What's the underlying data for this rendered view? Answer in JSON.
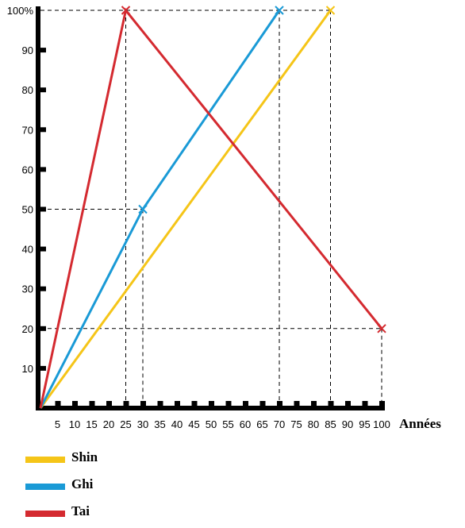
{
  "chart_data": {
    "type": "line",
    "xlabel": "Années",
    "ylabel": "",
    "xlim": [
      0,
      100
    ],
    "ylim": [
      0,
      100
    ],
    "x_ticks": [
      5,
      10,
      15,
      20,
      25,
      30,
      35,
      40,
      45,
      50,
      55,
      60,
      65,
      70,
      75,
      80,
      85,
      90,
      95,
      100
    ],
    "y_ticks": [
      10,
      20,
      30,
      40,
      50,
      60,
      70,
      80,
      90,
      100
    ],
    "y_tick_labels": [
      "10",
      "20",
      "30",
      "40",
      "50",
      "60",
      "70",
      "80",
      "90",
      "100%"
    ],
    "grid": false,
    "legend_position": "bottom-left",
    "series": [
      {
        "name": "Shin",
        "color": "#f5c518",
        "points": [
          [
            0,
            0
          ],
          [
            85,
            100
          ]
        ]
      },
      {
        "name": "Ghi",
        "color": "#1a9ad6",
        "points": [
          [
            0,
            0
          ],
          [
            30,
            50
          ],
          [
            70,
            100
          ]
        ]
      },
      {
        "name": "Tai",
        "color": "#d42a30",
        "points": [
          [
            0,
            0
          ],
          [
            25,
            100
          ],
          [
            100,
            20
          ]
        ]
      }
    ],
    "reference_points": [
      {
        "x": 25,
        "y": 100
      },
      {
        "x": 30,
        "y": 50
      },
      {
        "x": 70,
        "y": 100
      },
      {
        "x": 85,
        "y": 100
      },
      {
        "x": 100,
        "y": 20
      }
    ]
  }
}
